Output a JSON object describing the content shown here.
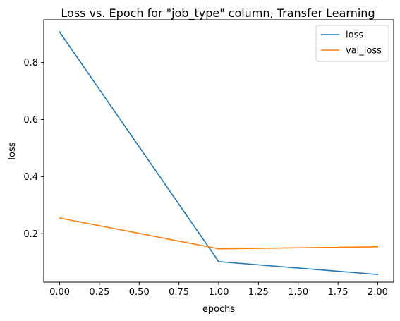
{
  "chart_data": {
    "type": "line",
    "title": "Loss vs. Epoch for \"job_type\" column, Transfer Learning",
    "xlabel": "epochs",
    "ylabel": "loss",
    "xlim": [
      -0.1,
      2.1
    ],
    "ylim": [
      0.03,
      0.95
    ],
    "xticks": [
      0.0,
      0.25,
      0.5,
      0.75,
      1.0,
      1.25,
      1.5,
      1.75,
      2.0
    ],
    "xtick_labels": [
      "0.00",
      "0.25",
      "0.50",
      "0.75",
      "1.00",
      "1.25",
      "1.50",
      "1.75",
      "2.00"
    ],
    "yticks": [
      0.2,
      0.4,
      0.6,
      0.8
    ],
    "ytick_labels": [
      "0.2",
      "0.4",
      "0.6",
      "0.8"
    ],
    "grid": false,
    "legend_position": "top-right",
    "x": [
      0,
      1,
      2
    ],
    "series": [
      {
        "name": "loss",
        "color": "#1f77b4",
        "values": [
          0.907,
          0.102,
          0.057
        ]
      },
      {
        "name": "val_loss",
        "color": "#ff7f0e",
        "values": [
          0.255,
          0.147,
          0.154
        ]
      }
    ]
  }
}
